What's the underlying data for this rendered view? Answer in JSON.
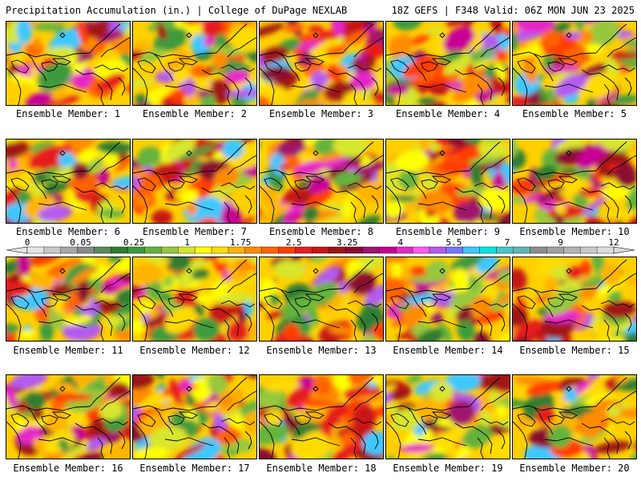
{
  "header": {
    "title_left": "Precipitation Accumulation (in.) | College of DuPage NEXLAB",
    "title_right": "18Z GEFS | F348 Valid: 06Z MON JUN 23 2025"
  },
  "colorbar": {
    "tick_labels": [
      "0",
      "0.05",
      "0.25",
      "1",
      "1.75",
      "2.5",
      "3.25",
      "4",
      "5.5",
      "7",
      "9",
      "12"
    ],
    "colors": [
      "#e6e6e6",
      "#c8c8c8",
      "#a8a8a8",
      "#8a8a8a",
      "#5a8a5a",
      "#2e7d32",
      "#3c9b3c",
      "#64b33c",
      "#96c83c",
      "#d7e62d",
      "#ffff00",
      "#ffdc00",
      "#ffb400",
      "#ff8c00",
      "#ff6400",
      "#ff3c00",
      "#e61e1e",
      "#c81414",
      "#a01414",
      "#8c0a32",
      "#a0146e",
      "#c80096",
      "#e628c8",
      "#ff5af0",
      "#b45af0",
      "#7878ff",
      "#3cc8ff",
      "#00e6e6",
      "#46c8c8",
      "#64b4b4",
      "#8c8c8c",
      "#a0a0a0",
      "#b4b4b4",
      "#c8c8c8",
      "#dcdcdc"
    ]
  },
  "members": [
    {
      "label": "Ensemble Member: 1"
    },
    {
      "label": "Ensemble Member: 2"
    },
    {
      "label": "Ensemble Member: 3"
    },
    {
      "label": "Ensemble Member: 4"
    },
    {
      "label": "Ensemble Member: 5"
    },
    {
      "label": "Ensemble Member: 6"
    },
    {
      "label": "Ensemble Member: 7"
    },
    {
      "label": "Ensemble Member: 8"
    },
    {
      "label": "Ensemble Member: 9"
    },
    {
      "label": "Ensemble Member: 10"
    },
    {
      "label": "Ensemble Member: 11"
    },
    {
      "label": "Ensemble Member: 12"
    },
    {
      "label": "Ensemble Member: 13"
    },
    {
      "label": "Ensemble Member: 14"
    },
    {
      "label": "Ensemble Member: 15"
    },
    {
      "label": "Ensemble Member: 16"
    },
    {
      "label": "Ensemble Member: 17"
    },
    {
      "label": "Ensemble Member: 18"
    },
    {
      "label": "Ensemble Member: 19"
    },
    {
      "label": "Ensemble Member: 20"
    }
  ]
}
